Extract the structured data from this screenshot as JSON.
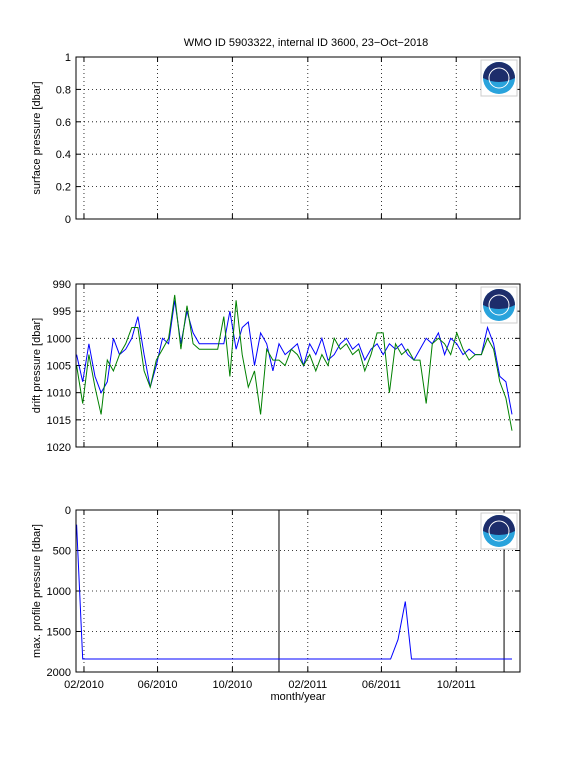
{
  "chart_data": [
    {
      "type": "line",
      "title": "WMO ID 5903322, internal ID 3600, 23−Oct−2018",
      "ylabel": "surface pressure [dbar]",
      "xlim": [
        734157,
        734881
      ],
      "xticks": [
        734170,
        734290,
        734412,
        734535,
        734655,
        734777
      ],
      "ylim": [
        0,
        1
      ],
      "yticks": [
        0,
        0.2,
        0.4,
        0.6,
        0.8,
        1
      ],
      "y_reversed": false,
      "grid": true,
      "series": []
    },
    {
      "type": "line",
      "ylabel": "drift pressure [dbar]",
      "xlim": [
        734157,
        734881
      ],
      "xticks": [
        734170,
        734290,
        734412,
        734535,
        734655,
        734777
      ],
      "ylim": [
        990,
        1020
      ],
      "yticks": [
        990,
        995,
        1000,
        1005,
        1010,
        1015,
        1020
      ],
      "y_reversed": true,
      "grid": true,
      "x": [
        734158,
        734168,
        734178,
        734188,
        734198,
        734208,
        734218,
        734228,
        734238,
        734248,
        734258,
        734268,
        734278,
        734288,
        734298,
        734308,
        734318,
        734328,
        734338,
        734348,
        734358,
        734368,
        734378,
        734388,
        734398,
        734408,
        734418,
        734428,
        734438,
        734448,
        734458,
        734468,
        734478,
        734488,
        734498,
        734508,
        734518,
        734528,
        734538,
        734548,
        734558,
        734568,
        734578,
        734588,
        734598,
        734608,
        734618,
        734628,
        734638,
        734648,
        734658,
        734668,
        734678,
        734688,
        734698,
        734708,
        734718,
        734728,
        734738,
        734748,
        734758,
        734768,
        734778,
        734788,
        734798,
        734808,
        734818,
        734828,
        734838,
        734848,
        734858,
        734868
      ],
      "series": [
        {
          "color": "#0000ff",
          "values": [
            1003,
            1008,
            1001,
            1007,
            1010,
            1008,
            1000,
            1003,
            1002,
            1000,
            996,
            1003,
            1009,
            1005,
            1000,
            1001,
            993,
            1001,
            995,
            999,
            1001,
            1001,
            1001,
            1001,
            1001,
            995,
            1002,
            998,
            997,
            1005,
            999,
            1001,
            1006,
            1001,
            1003,
            1002,
            1001,
            1005,
            1001,
            1003,
            1000,
            1004,
            1003,
            1001,
            1000,
            1002,
            1001,
            1004,
            1002,
            1001,
            1003,
            1001,
            1002,
            1001,
            1003,
            1004,
            1002,
            1000,
            1001,
            999,
            1003,
            1000,
            1001,
            1003,
            1002,
            1003,
            1003,
            998,
            1001,
            1007,
            1008,
            1014
          ]
        },
        {
          "color": "#008000",
          "values": [
            1005,
            1012,
            1003,
            1009,
            1014,
            1004,
            1006,
            1003,
            1001,
            998,
            998,
            1006,
            1009,
            1004,
            1002,
            1000,
            992,
            1002,
            994,
            1001,
            1002,
            1002,
            1002,
            1002,
            996,
            1007,
            993,
            1003,
            1009,
            1006,
            1014,
            1002,
            1004,
            1004,
            1005,
            1002,
            1003,
            1005,
            1003,
            1006,
            1003,
            1005,
            1000,
            1002,
            1001,
            1003,
            1002,
            1006,
            1003,
            999,
            999,
            1010,
            1001,
            1003,
            1002,
            1004,
            1004,
            1012,
            1001,
            1000,
            1001,
            1003,
            999,
            1002,
            1004,
            1003,
            1003,
            1000,
            1002,
            1008,
            1011,
            1017
          ]
        }
      ]
    },
    {
      "type": "line",
      "ylabel": "max. profile pressure [dbar]",
      "xlabel": "month/year",
      "xlim": [
        734157,
        734881
      ],
      "xticks": [
        {
          "value": 734170,
          "label": "02/2010"
        },
        {
          "value": 734290,
          "label": "06/2010"
        },
        {
          "value": 734412,
          "label": "10/2010"
        },
        {
          "value": 734535,
          "label": "02/2011"
        },
        {
          "value": 734655,
          "label": "06/2011"
        },
        {
          "value": 734777,
          "label": "10/2011"
        }
      ],
      "ylim": [
        0,
        2000
      ],
      "yticks": [
        0,
        500,
        1000,
        1500,
        2000
      ],
      "y_reversed": true,
      "grid": true,
      "x": [
        734158,
        734168,
        734670,
        734682,
        734694,
        734704,
        734868
      ],
      "series": [
        {
          "color": "#0000ff",
          "values": [
            180,
            1840,
            1840,
            1600,
            1130,
            1840,
            1840
          ]
        }
      ],
      "vlines": [
        734488,
        734855
      ],
      "vline_color": "#000000"
    }
  ]
}
